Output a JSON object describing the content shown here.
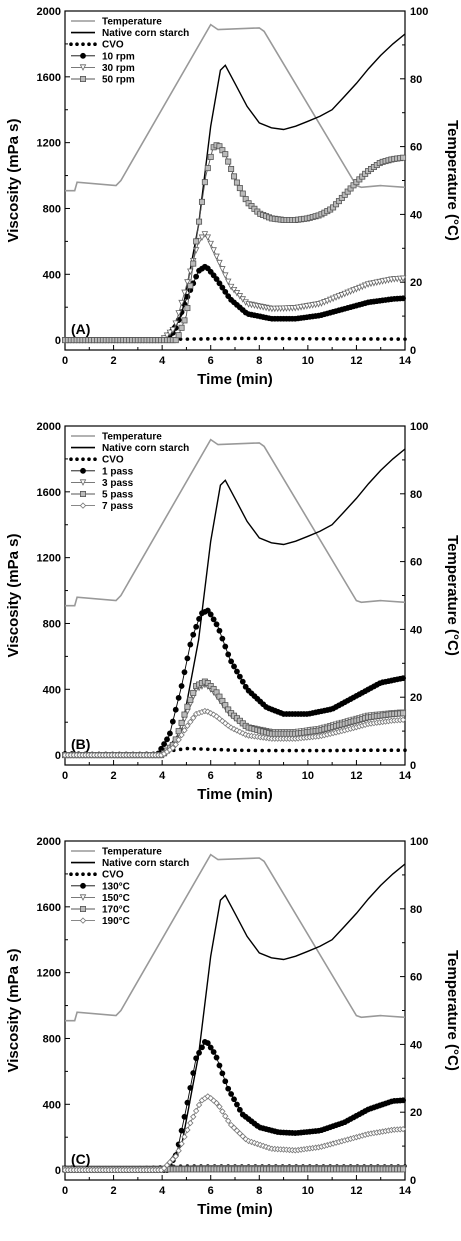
{
  "chart_data": [
    {
      "type": "line",
      "panel_label": "(A)",
      "xlabel": "Time (min)",
      "ylabel": "Viscosity (mPa s)",
      "y2label": "Temperature (°C)",
      "xlim": [
        0,
        14
      ],
      "ylim": [
        -60,
        2000
      ],
      "y2lim": [
        0,
        100
      ],
      "x_ticks": [
        "0",
        "2",
        "4",
        "6",
        "8",
        "10",
        "12",
        "14"
      ],
      "y_ticks": [
        "0",
        "400",
        "800",
        "1200",
        "1600",
        "2000"
      ],
      "y2_ticks": [
        "0",
        "20",
        "40",
        "60",
        "80",
        "100"
      ],
      "legend_position": "top-left",
      "series": [
        {
          "name": "Temperature",
          "axis": "right",
          "style": "line-gray",
          "color": "#999999",
          "x": [
            0,
            0.4,
            0.5,
            2.1,
            2.3,
            6.0,
            6.3,
            8.0,
            8.2,
            12.0,
            12.2,
            13.0,
            14.0
          ],
          "y": [
            47,
            47,
            49.5,
            48.5,
            50,
            96,
            94.5,
            95,
            94,
            48.5,
            48,
            48.5,
            48
          ]
        },
        {
          "name": "Native corn starch",
          "axis": "left",
          "style": "line-black",
          "color": "#000000",
          "x": [
            0,
            4.0,
            4.8,
            5.5,
            6.0,
            6.4,
            6.6,
            7.0,
            7.5,
            8.0,
            8.5,
            9.0,
            9.5,
            10.0,
            10.5,
            11.0,
            11.5,
            12.0,
            12.5,
            13.0,
            13.5,
            14.0
          ],
          "y": [
            0,
            0,
            150,
            700,
            1300,
            1640,
            1670,
            1560,
            1420,
            1320,
            1290,
            1280,
            1300,
            1330,
            1360,
            1400,
            1480,
            1560,
            1650,
            1730,
            1800,
            1860
          ]
        },
        {
          "name": "CVO",
          "axis": "left",
          "style": "dots",
          "color": "#000000",
          "x": [
            0,
            1,
            2,
            3,
            4,
            5,
            6,
            7,
            8,
            9,
            10,
            11,
            12,
            13,
            14
          ],
          "y": [
            5,
            5,
            5,
            5,
            5,
            6,
            8,
            10,
            10,
            9,
            8,
            8,
            7,
            7,
            6
          ]
        },
        {
          "name": "10 rpm",
          "axis": "left",
          "style": "marker-circle",
          "color": "#000000",
          "x": [
            0,
            4.0,
            4.5,
            5.0,
            5.5,
            5.8,
            6.2,
            6.8,
            7.5,
            8.5,
            9.5,
            10.5,
            11.5,
            12.5,
            13.5,
            14.0
          ],
          "y": [
            0,
            0,
            50,
            250,
            420,
            450,
            380,
            250,
            160,
            130,
            130,
            150,
            190,
            230,
            250,
            255
          ]
        },
        {
          "name": "30 rpm",
          "axis": "left",
          "style": "marker-triangle",
          "color": "#666666",
          "x": [
            0,
            4.0,
            4.5,
            5.0,
            5.5,
            5.8,
            6.2,
            6.8,
            7.5,
            8.5,
            9.5,
            10.5,
            11.5,
            12.5,
            13.5,
            14.0
          ],
          "y": [
            0,
            0,
            70,
            330,
            600,
            650,
            520,
            330,
            220,
            190,
            195,
            220,
            280,
            340,
            370,
            375
          ]
        },
        {
          "name": "50 rpm",
          "axis": "left",
          "style": "marker-square",
          "color": "#555555",
          "x": [
            0,
            4.6,
            5.0,
            5.4,
            5.8,
            6.1,
            6.3,
            6.6,
            7.0,
            7.5,
            8.0,
            8.5,
            9.0,
            9.5,
            10.0,
            10.5,
            11.0,
            11.5,
            12.0,
            12.5,
            13.0,
            13.5,
            14.0
          ],
          "y": [
            0,
            0,
            150,
            600,
            1000,
            1170,
            1190,
            1130,
            980,
            840,
            770,
            740,
            730,
            730,
            740,
            760,
            800,
            880,
            960,
            1030,
            1080,
            1100,
            1110
          ]
        }
      ]
    },
    {
      "type": "line",
      "panel_label": "(B)",
      "xlabel": "Time (min)",
      "ylabel": "Viscosity (mPa s)",
      "y2label": "Temperature (°C)",
      "xlim": [
        0,
        14
      ],
      "ylim": [
        -60,
        2000
      ],
      "y2lim": [
        0,
        100
      ],
      "x_ticks": [
        "0",
        "2",
        "4",
        "6",
        "8",
        "10",
        "12",
        "14"
      ],
      "y_ticks": [
        "0",
        "400",
        "800",
        "1200",
        "1600",
        "2000"
      ],
      "y2_ticks": [
        "0",
        "20",
        "40",
        "60",
        "80",
        "100"
      ],
      "legend_position": "top-left",
      "series": [
        {
          "name": "Temperature",
          "axis": "right",
          "style": "line-gray",
          "color": "#999999",
          "x": [
            0,
            0.4,
            0.5,
            2.1,
            2.3,
            6.0,
            6.3,
            8.0,
            8.2,
            12.0,
            12.2,
            13.0,
            14.0
          ],
          "y": [
            47,
            47,
            49.5,
            48.5,
            50,
            96,
            94.5,
            95,
            94,
            48.5,
            48,
            48.5,
            48
          ]
        },
        {
          "name": "Native corn starch",
          "axis": "left",
          "style": "line-black",
          "color": "#000000",
          "x": [
            0,
            4.0,
            4.8,
            5.5,
            6.0,
            6.4,
            6.6,
            7.0,
            7.5,
            8.0,
            8.5,
            9.0,
            9.5,
            10.0,
            10.5,
            11.0,
            11.5,
            12.0,
            12.5,
            13.0,
            13.5,
            14.0
          ],
          "y": [
            0,
            0,
            150,
            700,
            1300,
            1640,
            1670,
            1560,
            1420,
            1320,
            1290,
            1280,
            1300,
            1330,
            1360,
            1400,
            1480,
            1560,
            1650,
            1730,
            1800,
            1860
          ]
        },
        {
          "name": "CVO",
          "axis": "left",
          "style": "dots",
          "color": "#000000",
          "x": [
            0,
            1,
            2,
            3,
            4,
            4.5,
            5,
            6,
            7,
            8,
            9,
            10,
            11,
            12,
            13,
            14
          ],
          "y": [
            15,
            10,
            10,
            10,
            12,
            30,
            40,
            35,
            30,
            28,
            28,
            28,
            28,
            30,
            30,
            30
          ]
        },
        {
          "name": "1 pass",
          "axis": "left",
          "style": "marker-circle",
          "color": "#000000",
          "x": [
            0,
            3.8,
            4.3,
            4.8,
            5.2,
            5.6,
            5.9,
            6.3,
            6.8,
            7.5,
            8.3,
            9.0,
            10.0,
            11.0,
            12.0,
            13.0,
            14.0
          ],
          "y": [
            0,
            0,
            120,
            420,
            700,
            860,
            880,
            780,
            580,
            400,
            290,
            250,
            250,
            280,
            360,
            440,
            470
          ]
        },
        {
          "name": "3 pass",
          "axis": "left",
          "style": "marker-triangle",
          "color": "#666666",
          "x": [
            0,
            4.0,
            4.5,
            5.0,
            5.4,
            5.8,
            6.2,
            6.8,
            7.5,
            8.5,
            9.5,
            10.5,
            11.5,
            12.5,
            13.5,
            14.0
          ],
          "y": [
            0,
            0,
            60,
            250,
            400,
            430,
            370,
            250,
            170,
            140,
            140,
            160,
            200,
            240,
            255,
            260
          ]
        },
        {
          "name": "5 pass",
          "axis": "left",
          "style": "marker-square",
          "color": "#555555",
          "x": [
            0,
            4.0,
            4.5,
            5.0,
            5.4,
            5.8,
            6.2,
            6.8,
            7.5,
            8.5,
            9.5,
            10.5,
            11.5,
            12.5,
            13.5,
            14.0
          ],
          "y": [
            0,
            0,
            70,
            280,
            420,
            450,
            390,
            260,
            170,
            130,
            130,
            150,
            190,
            230,
            250,
            255
          ]
        },
        {
          "name": "7 pass",
          "axis": "left",
          "style": "marker-diamond",
          "color": "#777777",
          "x": [
            0,
            4.0,
            4.5,
            5.0,
            5.4,
            5.8,
            6.2,
            6.8,
            7.5,
            8.5,
            9.5,
            10.5,
            11.5,
            12.5,
            13.5,
            14.0
          ],
          "y": [
            0,
            0,
            50,
            170,
            250,
            270,
            240,
            170,
            120,
            100,
            100,
            115,
            150,
            190,
            210,
            215
          ]
        }
      ]
    },
    {
      "type": "line",
      "panel_label": "(C)",
      "xlabel": "Time (min)",
      "ylabel": "Viscosity (mPa s)",
      "y2label": "Temperature (°C)",
      "xlim": [
        0,
        14
      ],
      "ylim": [
        -60,
        2000
      ],
      "y2lim": [
        0,
        100
      ],
      "x_ticks": [
        "0",
        "2",
        "4",
        "6",
        "8",
        "10",
        "12",
        "14"
      ],
      "y_ticks": [
        "0",
        "400",
        "800",
        "1200",
        "1600",
        "2000"
      ],
      "y2_ticks": [
        "0",
        "20",
        "40",
        "60",
        "80",
        "100"
      ],
      "legend_position": "top-left",
      "series": [
        {
          "name": "Temperature",
          "axis": "right",
          "style": "line-gray",
          "color": "#999999",
          "x": [
            0,
            0.4,
            0.5,
            2.1,
            2.3,
            6.0,
            6.3,
            8.0,
            8.2,
            12.0,
            12.2,
            13.0,
            14.0
          ],
          "y": [
            47,
            47,
            49.5,
            48.5,
            50,
            96,
            94.5,
            95,
            94,
            48.5,
            48,
            48.5,
            48
          ]
        },
        {
          "name": "Native corn starch",
          "axis": "left",
          "style": "line-black",
          "color": "#000000",
          "x": [
            0,
            4.0,
            4.8,
            5.5,
            6.0,
            6.4,
            6.6,
            7.0,
            7.5,
            8.0,
            8.5,
            9.0,
            9.5,
            10.0,
            10.5,
            11.0,
            11.5,
            12.0,
            12.5,
            13.0,
            13.5,
            14.0
          ],
          "y": [
            0,
            0,
            150,
            700,
            1300,
            1640,
            1670,
            1560,
            1420,
            1320,
            1290,
            1280,
            1300,
            1330,
            1360,
            1400,
            1480,
            1560,
            1650,
            1730,
            1800,
            1860
          ]
        },
        {
          "name": "CVO",
          "axis": "left",
          "style": "dots",
          "color": "#000000",
          "x": [
            0,
            1,
            2,
            3,
            4,
            5,
            6,
            7,
            8,
            9,
            10,
            11,
            12,
            13,
            14
          ],
          "y": [
            20,
            15,
            15,
            15,
            20,
            25,
            25,
            25,
            25,
            25,
            25,
            25,
            25,
            25,
            25
          ]
        },
        {
          "name": "130°C",
          "axis": "left",
          "style": "marker-circle",
          "color": "#000000",
          "x": [
            0,
            4.2,
            4.6,
            5.0,
            5.4,
            5.8,
            6.2,
            6.7,
            7.3,
            8.0,
            8.8,
            9.5,
            10.5,
            11.5,
            12.5,
            13.5,
            14.0
          ],
          "y": [
            0,
            0,
            100,
            380,
            680,
            790,
            700,
            500,
            340,
            260,
            230,
            225,
            240,
            290,
            370,
            420,
            425
          ]
        },
        {
          "name": "150°C",
          "axis": "left",
          "style": "marker-triangle",
          "color": "#666666",
          "x": [
            0,
            1,
            2,
            3,
            4,
            5,
            6,
            7,
            8,
            9,
            10,
            11,
            12,
            13,
            14
          ],
          "y": [
            10,
            8,
            8,
            8,
            8,
            10,
            12,
            12,
            12,
            12,
            12,
            12,
            12,
            12,
            12
          ]
        },
        {
          "name": "170°C",
          "axis": "left",
          "style": "marker-square",
          "color": "#555555",
          "x": [
            0,
            1,
            2,
            3,
            4,
            5,
            6,
            7,
            8,
            9,
            10,
            11,
            12,
            13,
            14
          ],
          "y": [
            5,
            5,
            5,
            5,
            5,
            5,
            5,
            5,
            5,
            5,
            5,
            5,
            5,
            5,
            5
          ]
        },
        {
          "name": "190°C",
          "axis": "left",
          "style": "marker-diamond",
          "color": "#777777",
          "x": [
            0,
            4.0,
            4.6,
            5.2,
            5.6,
            5.9,
            6.3,
            6.8,
            7.5,
            8.5,
            9.5,
            10.5,
            11.5,
            12.5,
            13.5,
            14.0
          ],
          "y": [
            0,
            0,
            90,
            300,
            420,
            450,
            400,
            280,
            180,
            130,
            120,
            140,
            180,
            220,
            245,
            250
          ]
        }
      ]
    }
  ]
}
